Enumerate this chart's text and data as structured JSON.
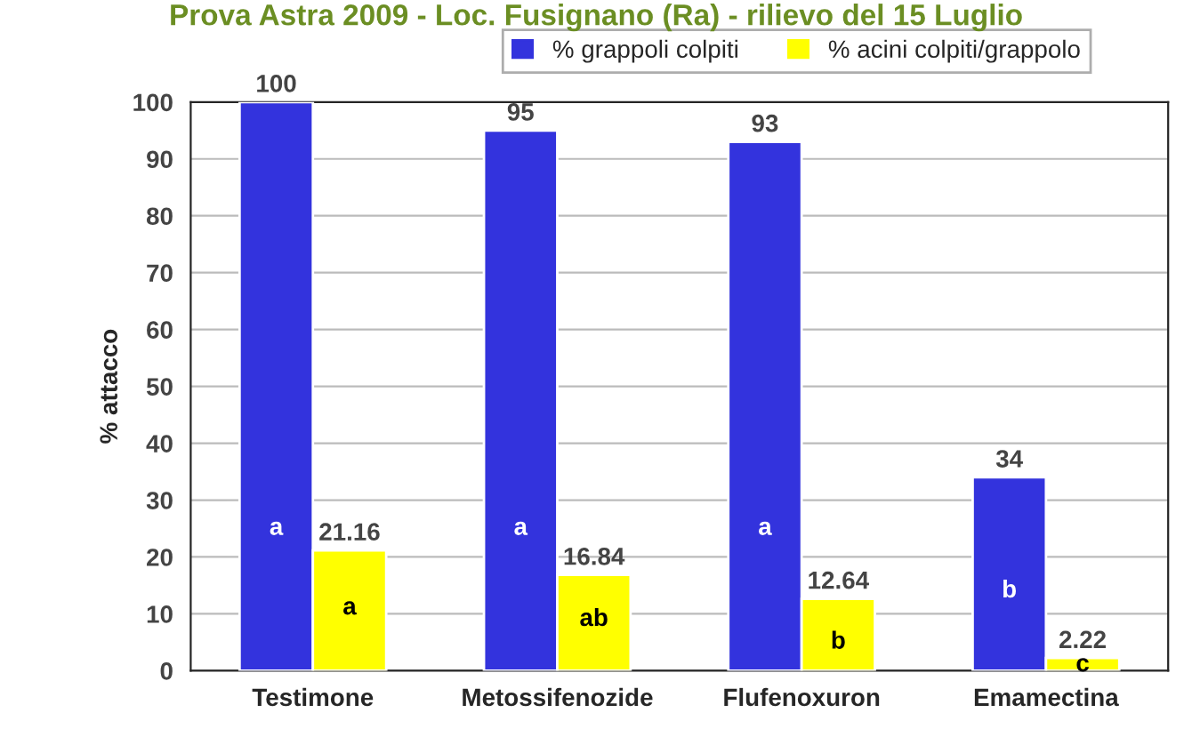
{
  "chart_data": {
    "type": "bar",
    "title": "Prova Astra 2009 - Loc. Fusignano (Ra) - rilievo del 15 Luglio",
    "ylabel": "% attacco",
    "categories": [
      "Testimone",
      "Metossifenozide",
      "Flufenoxuron",
      "Emamectina"
    ],
    "series": [
      {
        "name": "% grappoli colpiti",
        "color": "#3333dd",
        "values": [
          100,
          95,
          93,
          34
        ]
      },
      {
        "name": "% acini colpiti/grappolo",
        "color": "#ffff00",
        "values": [
          21.16,
          16.84,
          12.64,
          2.22
        ]
      }
    ],
    "ylim": [
      0,
      100
    ],
    "yticks": [
      0,
      10,
      20,
      30,
      40,
      50,
      60,
      70,
      80,
      90,
      100
    ],
    "grid": "y",
    "legend": "top",
    "data_labels": true,
    "annotations": [
      {
        "text": "a",
        "x": "Testimone",
        "y": 25
      },
      {
        "text": "a",
        "x": "Testimone",
        "y": 11
      },
      {
        "text": "a",
        "x": "Metossifenozide",
        "y": 25
      },
      {
        "text": "ab",
        "x": "Metossifenozide",
        "y": 9
      },
      {
        "text": "a",
        "x": "Flufenoxuron",
        "y": 25
      },
      {
        "text": "b",
        "x": "Flufenoxuron",
        "y": 5
      },
      {
        "text": "b",
        "x": "Emamectina",
        "y": 14
      },
      {
        "text": "c",
        "x": "Emamectina",
        "y": 1
      }
    ]
  }
}
